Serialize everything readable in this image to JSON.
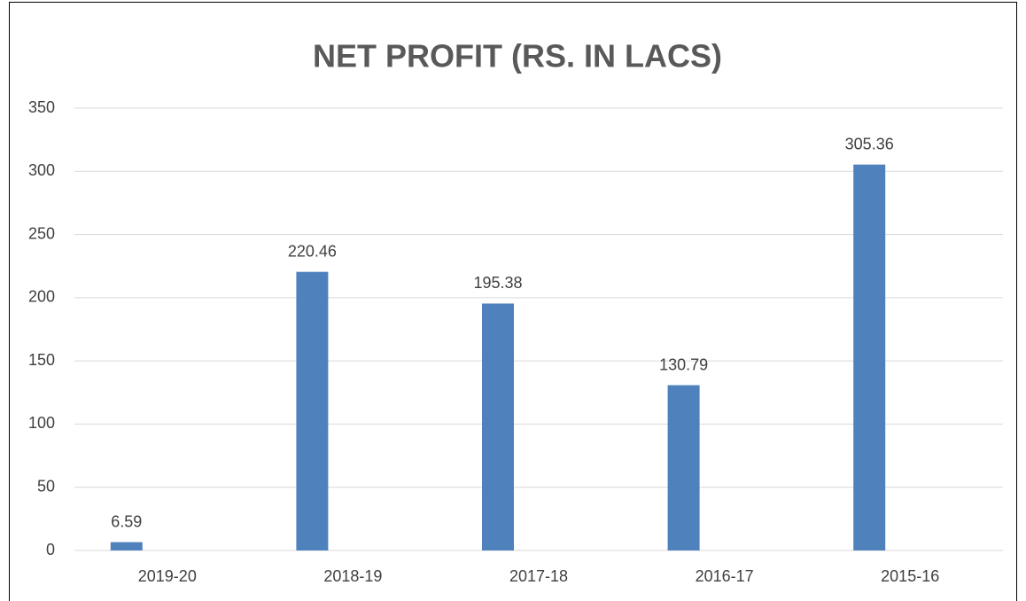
{
  "chart_data": {
    "type": "bar",
    "title": "NET PROFIT (RS. IN LACS)",
    "categories": [
      "2019-20",
      "2018-19",
      "2017-18",
      "2016-17",
      "2015-16"
    ],
    "values": [
      6.59,
      220.46,
      195.38,
      130.79,
      305.36
    ],
    "color": "#4f81bd",
    "ylim": [
      0,
      350
    ],
    "yticks": [
      0,
      50,
      100,
      150,
      200,
      250,
      300,
      350
    ],
    "grid": true
  }
}
